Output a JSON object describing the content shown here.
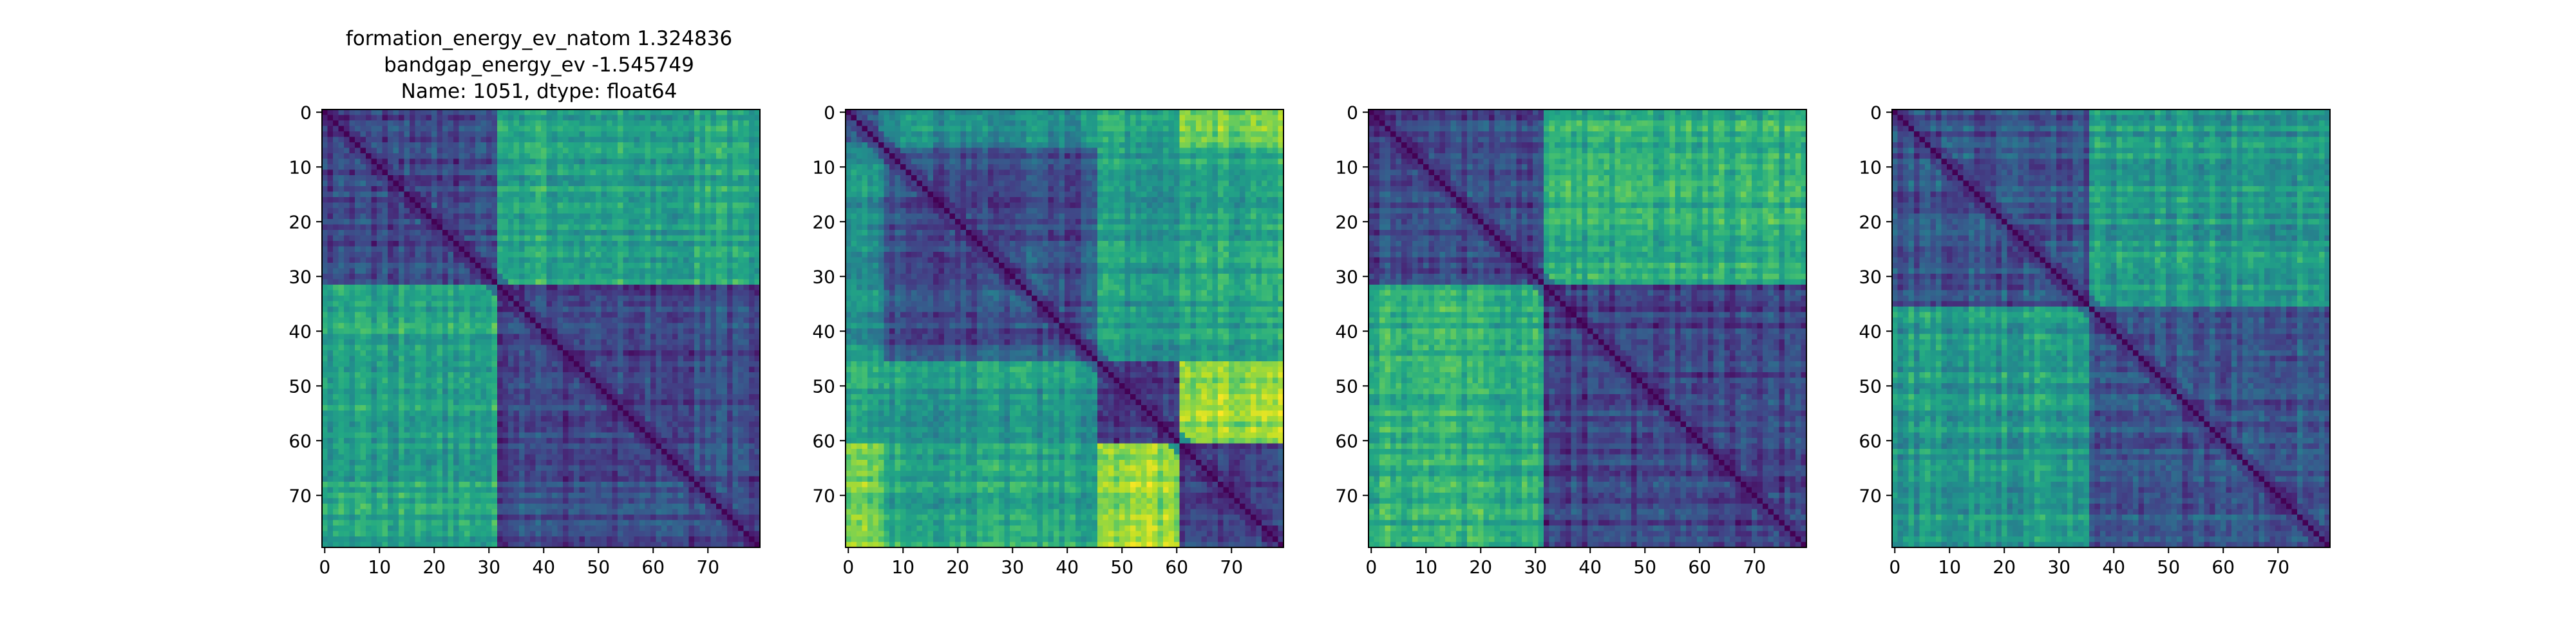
{
  "title_lines": [
    "formation_energy_ev_natom    1.324836",
    "bandgap_energy_ev          -1.545749",
    "Name: 1051, dtype: float64"
  ],
  "chart_data": [
    {
      "type": "heatmap",
      "colormap": "viridis",
      "size": 80,
      "blocks": [
        [
          0,
          32
        ],
        [
          32,
          80
        ]
      ],
      "block_strength": [
        [
          0.18,
          0.55
        ],
        [
          0.55,
          0.18
        ]
      ],
      "xticks": [
        0,
        10,
        20,
        30,
        40,
        50,
        60,
        70
      ],
      "yticks": [
        0,
        10,
        20,
        30,
        40,
        50,
        60,
        70
      ],
      "xlim": [
        -0.5,
        79.5
      ],
      "ylim": [
        79.5,
        -0.5
      ],
      "grid": false
    },
    {
      "type": "heatmap",
      "colormap": "viridis",
      "size": 80,
      "blocks": [
        [
          0,
          7
        ],
        [
          7,
          46
        ],
        [
          46,
          61
        ],
        [
          61,
          80
        ]
      ],
      "block_strength": [
        [
          0.3,
          0.45,
          0.55,
          0.75
        ],
        [
          0.45,
          0.2,
          0.5,
          0.55
        ],
        [
          0.55,
          0.5,
          0.15,
          0.8
        ],
        [
          0.75,
          0.55,
          0.8,
          0.15
        ]
      ],
      "xticks": [
        0,
        10,
        20,
        30,
        40,
        50,
        60,
        70
      ],
      "yticks": [
        0,
        10,
        20,
        30,
        40,
        50,
        60,
        70
      ],
      "xlim": [
        -0.5,
        79.5
      ],
      "ylim": [
        79.5,
        -0.5
      ],
      "grid": false
    },
    {
      "type": "heatmap",
      "colormap": "viridis",
      "size": 80,
      "blocks": [
        [
          0,
          32
        ],
        [
          32,
          80
        ]
      ],
      "block_strength": [
        [
          0.18,
          0.58
        ],
        [
          0.58,
          0.15
        ]
      ],
      "xticks": [
        0,
        10,
        20,
        30,
        40,
        50,
        60,
        70
      ],
      "yticks": [
        0,
        10,
        20,
        30,
        40,
        50,
        60,
        70
      ],
      "xlim": [
        -0.5,
        79.5
      ],
      "ylim": [
        79.5,
        -0.5
      ],
      "grid": false
    },
    {
      "type": "heatmap",
      "colormap": "viridis",
      "size": 80,
      "blocks": [
        [
          0,
          36
        ],
        [
          36,
          80
        ]
      ],
      "block_strength": [
        [
          0.22,
          0.5
        ],
        [
          0.5,
          0.22
        ]
      ],
      "xticks": [
        0,
        10,
        20,
        30,
        40,
        50,
        60,
        70
      ],
      "yticks": [
        0,
        10,
        20,
        30,
        40,
        50,
        60,
        70
      ],
      "xlim": [
        -0.5,
        79.5
      ],
      "ylim": [
        79.5,
        -0.5
      ],
      "grid": false
    }
  ]
}
